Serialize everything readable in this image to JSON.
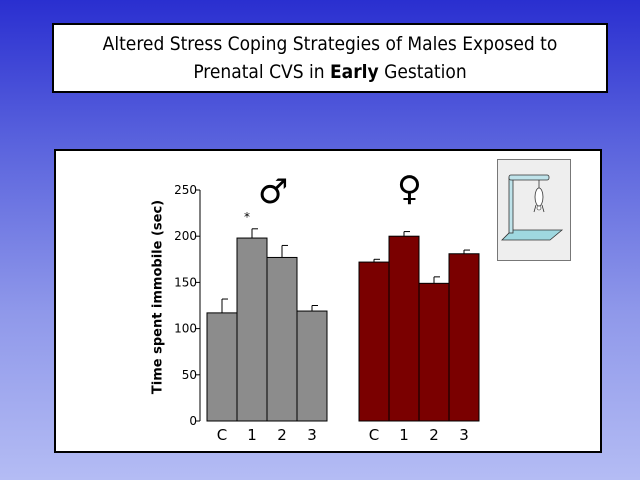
{
  "title": {
    "line1": "Altered Stress Coping Strategies of Males Exposed to",
    "line2_pre": "Prenatal CVS in ",
    "line2_bold": "Early",
    "line2_post": " Gestation"
  },
  "symbols": {
    "male": "♂",
    "female": "♀"
  },
  "chart_data": {
    "type": "bar",
    "ylabel": "Time spent immobile (sec)",
    "ylim": [
      0,
      250
    ],
    "yticks": [
      0,
      50,
      100,
      150,
      200,
      250
    ],
    "grid": false,
    "groups": [
      {
        "symbol": "male",
        "color": "#8c8c8c",
        "categories": [
          "C",
          "1",
          "2",
          "3"
        ],
        "values": [
          117,
          198,
          177,
          119
        ],
        "errors": [
          15,
          10,
          13,
          6
        ],
        "annotations": [
          "",
          "*",
          "",
          ""
        ]
      },
      {
        "symbol": "female",
        "color": "#7a0000",
        "categories": [
          "C",
          "1",
          "2",
          "3"
        ],
        "values": [
          172,
          200,
          149,
          181
        ],
        "errors": [
          3,
          5,
          7,
          4
        ],
        "annotations": [
          "",
          "",
          "",
          ""
        ]
      }
    ]
  },
  "inset": {
    "icon": "tail-suspension-test-icon"
  }
}
